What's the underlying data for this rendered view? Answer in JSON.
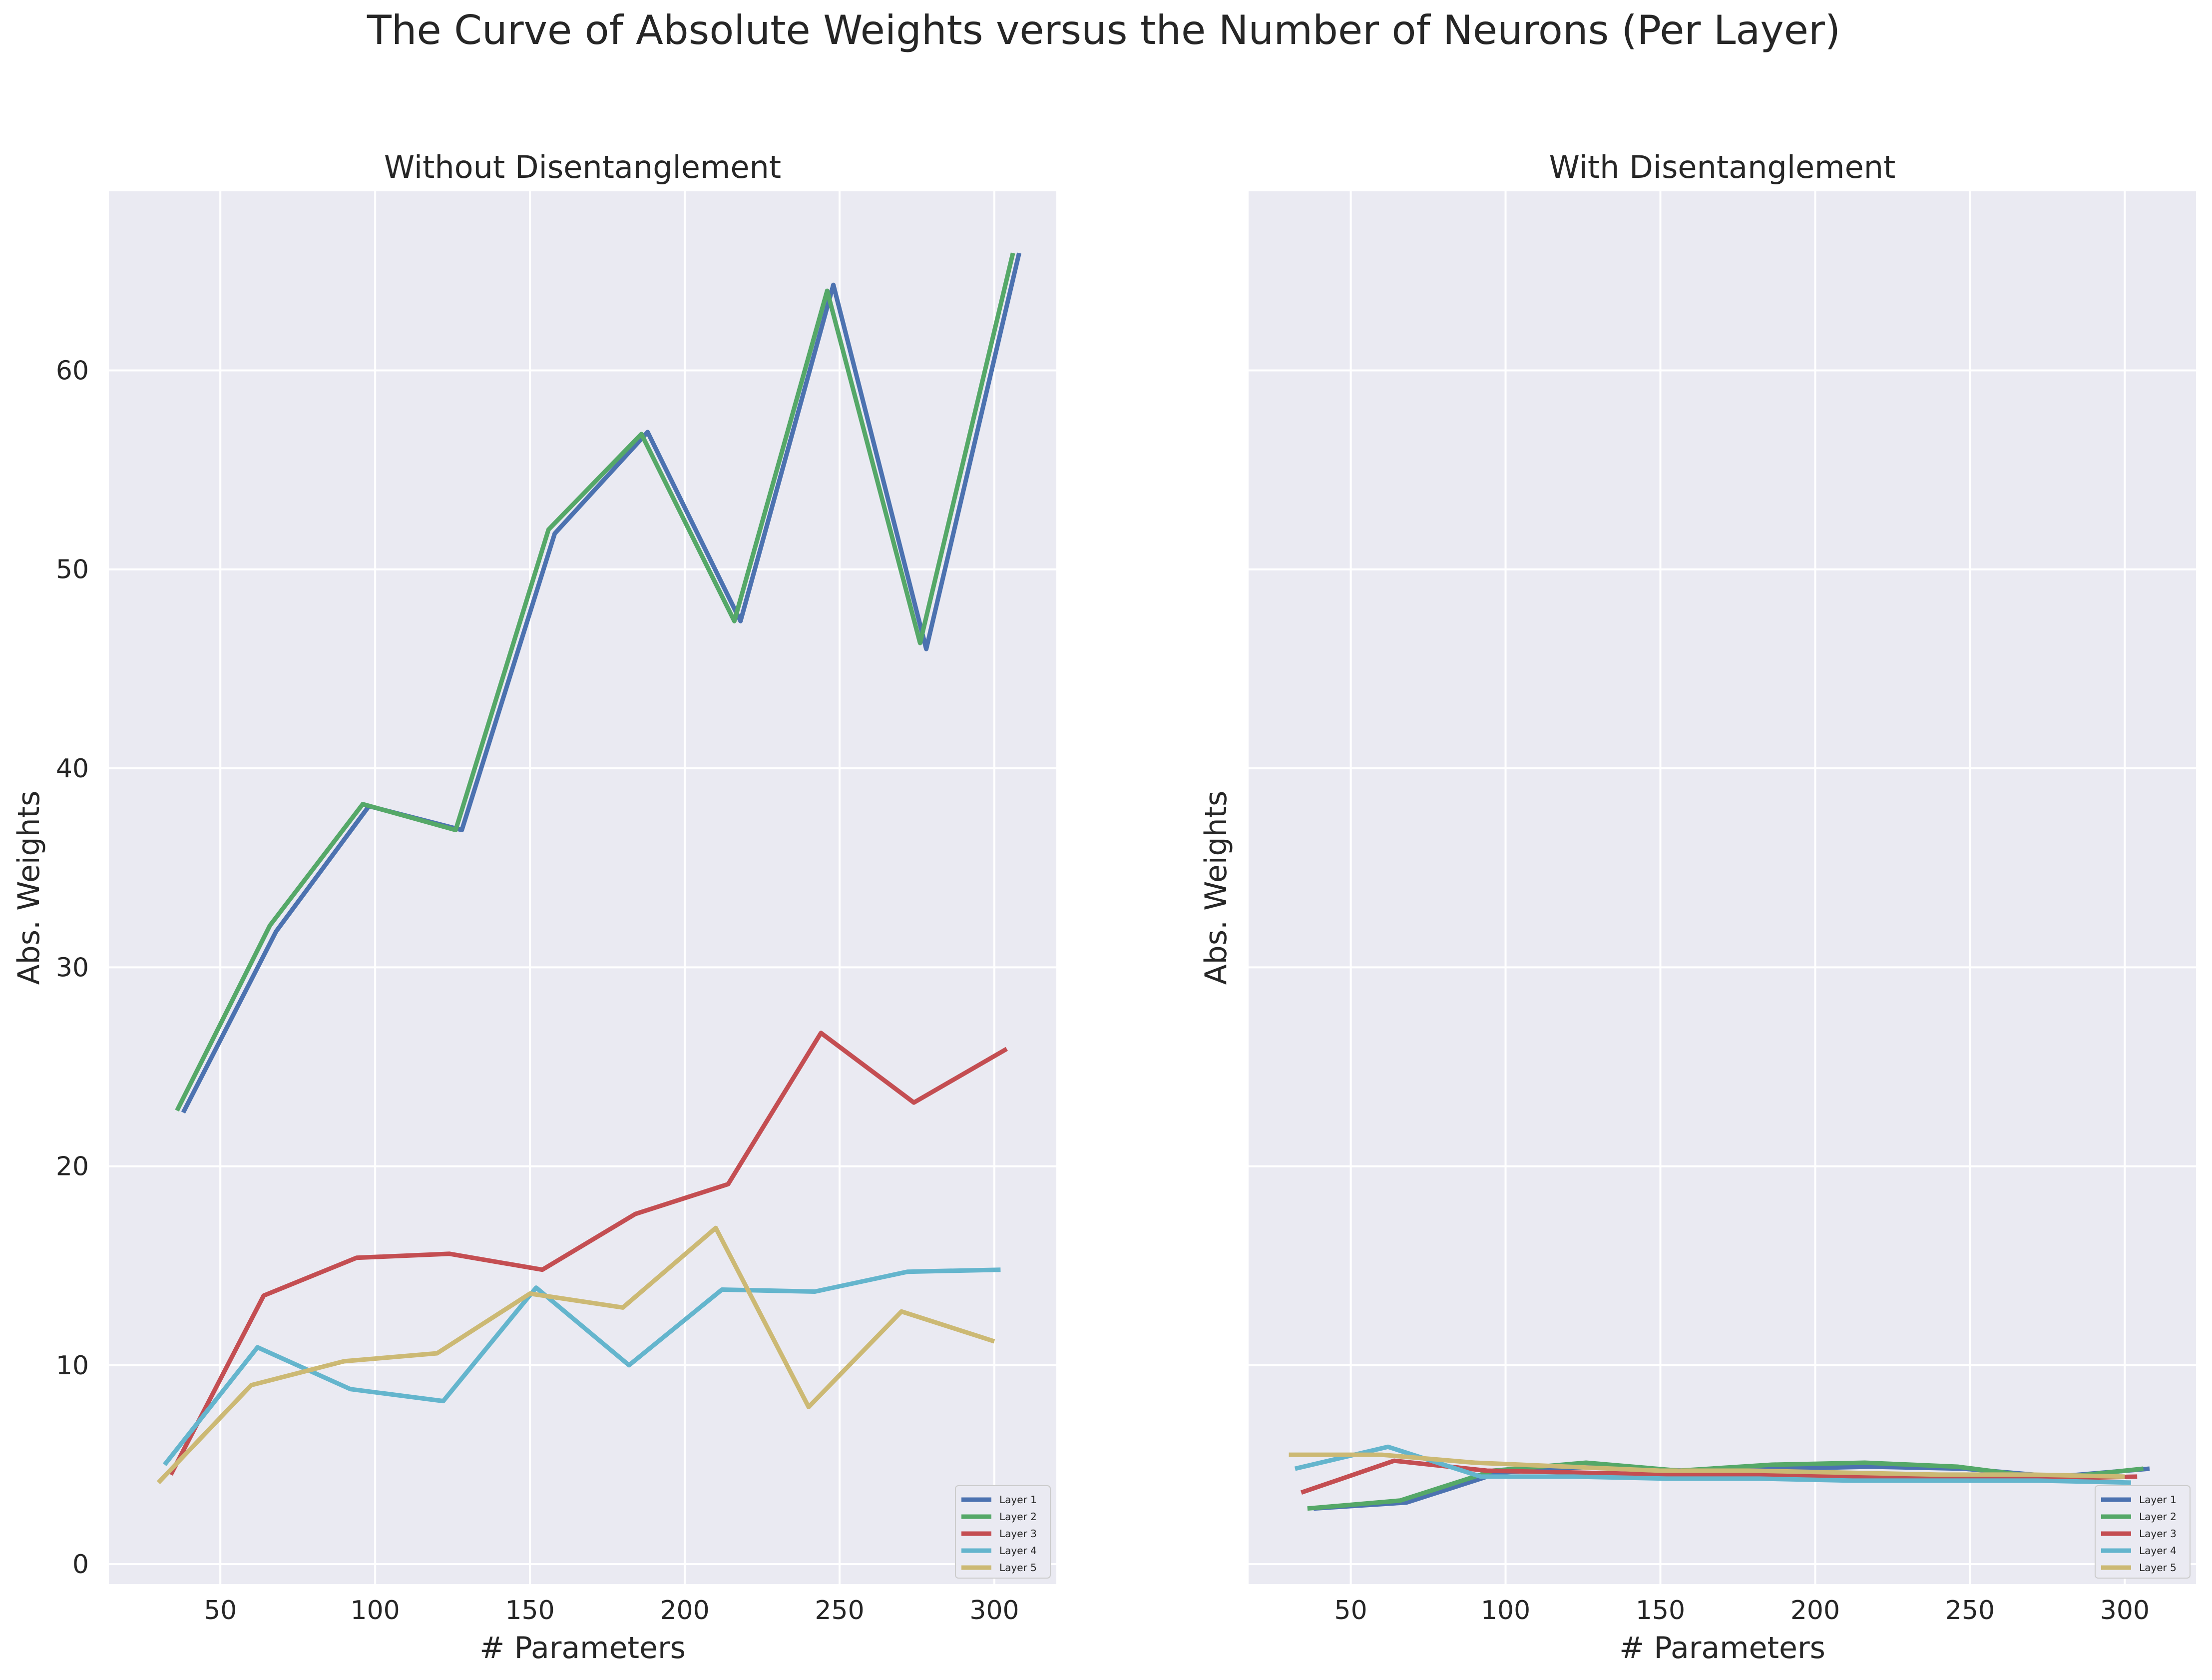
{
  "figure": {
    "suptitle": "The Curve of Absolute Weights versus the Number of Neurons (Per Layer)"
  },
  "colors": {
    "background": "#eaeaf2",
    "grid": "#ffffff",
    "Layer 1": "#4c72b0",
    "Layer 2": "#55a868",
    "Layer 3": "#c44e52",
    "Layer 4": "#64b5cd",
    "Layer 5": "#ccb974"
  },
  "chart_data": [
    {
      "type": "line",
      "title": "Without Disentanglement",
      "xlabel": "# Parameters",
      "ylabel": "Abs. Weights",
      "xlim": [
        14,
        320
      ],
      "ylim": [
        -1,
        69
      ],
      "xticks": [
        50,
        100,
        150,
        200,
        250,
        300
      ],
      "yticks": [
        0,
        10,
        20,
        30,
        40,
        50,
        60
      ],
      "grid": true,
      "legend": "lower right",
      "series": [
        {
          "name": "Layer 1",
          "x": [
            38,
            68,
            98,
            128,
            158,
            188,
            218,
            248,
            278,
            308
          ],
          "y": [
            22.7,
            31.8,
            38.1,
            36.9,
            51.8,
            56.9,
            47.4,
            64.3,
            46.0,
            65.9
          ]
        },
        {
          "name": "Layer 2",
          "x": [
            36,
            66,
            96,
            126,
            156,
            186,
            216,
            246,
            276,
            306
          ],
          "y": [
            22.8,
            32.1,
            38.2,
            36.9,
            52.0,
            56.8,
            47.4,
            64.0,
            46.3,
            65.9
          ]
        },
        {
          "name": "Layer 3",
          "x": [
            34,
            64,
            94,
            124,
            154,
            184,
            214,
            244,
            274,
            304
          ],
          "y": [
            4.5,
            13.5,
            15.4,
            15.6,
            14.8,
            17.6,
            19.1,
            26.7,
            23.2,
            25.9
          ]
        },
        {
          "name": "Layer 4",
          "x": [
            32,
            62,
            92,
            122,
            152,
            182,
            212,
            242,
            272,
            302
          ],
          "y": [
            5.0,
            10.9,
            8.8,
            8.2,
            13.9,
            10.0,
            13.8,
            13.7,
            14.7,
            14.8
          ]
        },
        {
          "name": "Layer 5",
          "x": [
            30,
            60,
            90,
            120,
            150,
            180,
            210,
            240,
            270,
            300
          ],
          "y": [
            4.1,
            9.0,
            10.2,
            10.6,
            13.6,
            12.9,
            16.9,
            7.9,
            12.7,
            11.2
          ]
        }
      ]
    },
    {
      "type": "line",
      "title": "With Disentanglement",
      "xlabel": "# Parameters",
      "ylabel": "Abs. Weights",
      "xlim": [
        17,
        323
      ],
      "ylim": [
        -1,
        69
      ],
      "xticks": [
        50,
        100,
        150,
        200,
        250,
        300
      ],
      "yticks": [
        0,
        10,
        20,
        30,
        40,
        50,
        60
      ],
      "show_yticklabels": false,
      "grid": true,
      "legend": "lower right",
      "series": [
        {
          "name": "Layer 1",
          "x": [
            38,
            68,
            98,
            128,
            158,
            188,
            218,
            248,
            278,
            308
          ],
          "y": [
            2.8,
            3.1,
            4.6,
            4.9,
            4.7,
            4.8,
            4.9,
            4.8,
            4.4,
            4.8
          ]
        },
        {
          "name": "Layer 2",
          "x": [
            36,
            66,
            96,
            126,
            156,
            186,
            216,
            246,
            276,
            306
          ],
          "y": [
            2.8,
            3.2,
            4.7,
            5.1,
            4.7,
            5.0,
            5.1,
            4.9,
            4.3,
            4.8
          ]
        },
        {
          "name": "Layer 3",
          "x": [
            34,
            64,
            94,
            124,
            154,
            184,
            214,
            244,
            274,
            304
          ],
          "y": [
            3.6,
            5.2,
            4.7,
            4.6,
            4.5,
            4.5,
            4.4,
            4.4,
            4.3,
            4.4
          ]
        },
        {
          "name": "Layer 4",
          "x": [
            32,
            62,
            92,
            122,
            152,
            182,
            212,
            242,
            272,
            302
          ],
          "y": [
            4.8,
            5.9,
            4.4,
            4.4,
            4.3,
            4.3,
            4.2,
            4.2,
            4.2,
            4.1
          ]
        },
        {
          "name": "Layer 5",
          "x": [
            30,
            60,
            90,
            120,
            150,
            180,
            210,
            240,
            270,
            300
          ],
          "y": [
            5.5,
            5.5,
            5.1,
            4.9,
            4.7,
            4.7,
            4.6,
            4.5,
            4.5,
            4.4
          ]
        }
      ]
    }
  ]
}
